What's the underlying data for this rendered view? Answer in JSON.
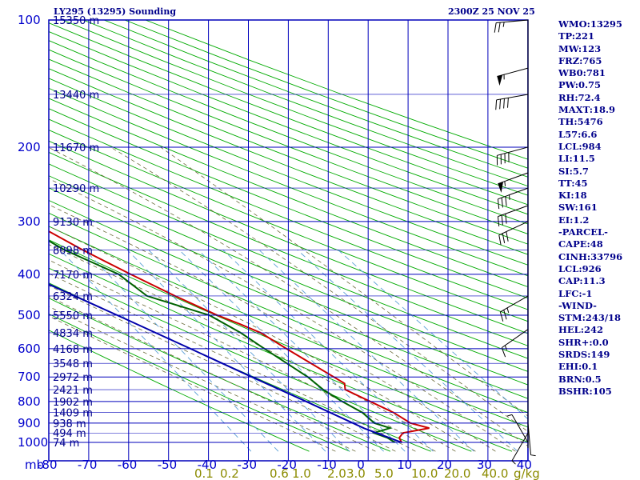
{
  "header": {
    "station_title": "LY295 (13295) Sounding",
    "valid_time": "2300Z 25 NOV 25"
  },
  "indices": [
    "WMO:13295",
    "TP:221",
    "MW:123",
    "FRZ:765",
    "WB0:781",
    "PW:0.75",
    "RH:72.4",
    "MAXT:18.9",
    "TH:5476",
    "L57:6.6",
    "LCL:984",
    "LI:11.5",
    "SI:5.7",
    "TT:45",
    "KI:18",
    "SW:161",
    "EI:1.2",
    "-PARCEL-",
    "CAPE:48",
    "CINH:33796",
    "LCL:926",
    "CAP:11.3",
    "LFC:-1",
    "-WIND-",
    "STM:243/18",
    "HEL:242",
    "SHR+:0.0",
    "SRDS:149",
    "EHI:0.1",
    "BRN:0.5",
    "BSHR:105"
  ],
  "colors": {
    "grid": "#0000bb",
    "dry_adiabat": "#00aa00",
    "moist_adiabat": "#6b6b3a",
    "mixing_ratio": "#5a9fd6",
    "temperature": "#cc0000",
    "dewpoint": "#006400",
    "parcel": "#0000aa",
    "wind_barb": "#000000",
    "mix_ratio_label": "#8b8b00"
  },
  "chart_data": {
    "type": "line",
    "title": "",
    "xlabel": "",
    "ylabel": "mb",
    "skew": "skew-T log-p",
    "pressure_levels": [
      100,
      200,
      300,
      400,
      500,
      600,
      700,
      800,
      900,
      1000
    ],
    "pressure_range": [
      100,
      1050
    ],
    "x_ticks": [
      -80,
      -70,
      -60,
      -50,
      -40,
      -30,
      -20,
      -10,
      0,
      10,
      20,
      30,
      40
    ],
    "x_range": [
      -80,
      40
    ],
    "height_labels": [
      {
        "p": 100,
        "text": "15350 m"
      },
      {
        "p": 150,
        "text": "13440 m"
      },
      {
        "p": 200,
        "text": "11670 m"
      },
      {
        "p": 250,
        "text": "10290 m"
      },
      {
        "p": 300,
        "text": "9130 m"
      },
      {
        "p": 350,
        "text": "8098 m"
      },
      {
        "p": 400,
        "text": "7170 m"
      },
      {
        "p": 450,
        "text": "6324 m"
      },
      {
        "p": 500,
        "text": "5550 m"
      },
      {
        "p": 550,
        "text": "4834 m"
      },
      {
        "p": 600,
        "text": "4168 m"
      },
      {
        "p": 650,
        "text": "3548 m"
      },
      {
        "p": 700,
        "text": "2972 m"
      },
      {
        "p": 750,
        "text": "2421 m"
      },
      {
        "p": 800,
        "text": "1902 m"
      },
      {
        "p": 850,
        "text": "1409 m"
      },
      {
        "p": 900,
        "text": "938 m"
      },
      {
        "p": 950,
        "text": "494 m"
      },
      {
        "p": 1000,
        "text": "74 m"
      }
    ],
    "mixing_ratio_labels": [
      "0.1",
      "0.2",
      "0.6",
      "1.0",
      "2.0",
      "3.0",
      "5.0",
      "10.0",
      "20.0",
      "40.0",
      "g/kg"
    ],
    "mixing_ratio_values": [
      0.1,
      0.2,
      0.6,
      1,
      2,
      3,
      5,
      10,
      20,
      40
    ],
    "series": [
      {
        "id": "temperature",
        "points": [
          {
            "p": 1000,
            "t": -1.8
          },
          {
            "p": 975,
            "t": -1.5
          },
          {
            "p": 950,
            "t": 0.3
          },
          {
            "p": 925,
            "t": 7.8
          },
          {
            "p": 900,
            "t": 4.0
          },
          {
            "p": 850,
            "t": 1.8
          },
          {
            "p": 800,
            "t": -2.0
          },
          {
            "p": 750,
            "t": -6.0
          },
          {
            "p": 725,
            "t": -5.0
          },
          {
            "p": 700,
            "t": -6.5
          },
          {
            "p": 600,
            "t": -13.0
          },
          {
            "p": 550,
            "t": -16.5
          },
          {
            "p": 525,
            "t": -20.0
          },
          {
            "p": 500,
            "t": -24.0
          },
          {
            "p": 450,
            "t": -31.0
          },
          {
            "p": 400,
            "t": -38.0
          },
          {
            "p": 350,
            "t": -45.5
          },
          {
            "p": 300,
            "t": -53.0
          },
          {
            "p": 250,
            "t": -61.0
          },
          {
            "p": 225,
            "t": -64.0
          },
          {
            "p": 200,
            "t": -62.0
          },
          {
            "p": 150,
            "t": -64.0
          },
          {
            "p": 130,
            "t": -67.0
          },
          {
            "p": 110,
            "t": -60.0
          },
          {
            "p": 100,
            "t": -63.0
          }
        ]
      },
      {
        "id": "dewpoint",
        "points": [
          {
            "p": 1000,
            "t": -3.5
          },
          {
            "p": 975,
            "t": -4.5
          },
          {
            "p": 950,
            "t": -7.0
          },
          {
            "p": 925,
            "t": -2.0
          },
          {
            "p": 900,
            "t": -5.0
          },
          {
            "p": 850,
            "t": -6.0
          },
          {
            "p": 800,
            "t": -9.0
          },
          {
            "p": 750,
            "t": -11.5
          },
          {
            "p": 700,
            "t": -13.0
          },
          {
            "p": 600,
            "t": -18.5
          },
          {
            "p": 550,
            "t": -21.5
          },
          {
            "p": 500,
            "t": -26.0
          },
          {
            "p": 450,
            "t": -38.0
          },
          {
            "p": 400,
            "t": -41.0
          },
          {
            "p": 350,
            "t": -50.0
          },
          {
            "p": 300,
            "t": -57.0
          },
          {
            "p": 250,
            "t": -72.0
          },
          {
            "p": 225,
            "t": -75.0
          },
          {
            "p": 200,
            "t": -72.0
          },
          {
            "p": 180,
            "t": -78.0
          },
          {
            "p": 150,
            "t": -81.0
          },
          {
            "p": 130,
            "t": -87.0
          },
          {
            "p": 115,
            "t": -88.0
          },
          {
            "p": 100,
            "t": -87.0
          }
        ]
      },
      {
        "id": "parcel",
        "points": [
          {
            "p": 1000,
            "t": -1.8
          },
          {
            "p": 926,
            "t": -8.5
          },
          {
            "p": 800,
            "t": -18.0
          },
          {
            "p": 700,
            "t": -27.0
          },
          {
            "p": 600,
            "t": -37.0
          },
          {
            "p": 500,
            "t": -49.0
          },
          {
            "p": 400,
            "t": -64.0
          },
          {
            "p": 300,
            "t": -84.0
          },
          {
            "p": 226,
            "t": -102.0
          }
        ]
      }
    ],
    "winds": [
      {
        "p": 100,
        "dir": 265,
        "spd": 25
      },
      {
        "p": 130,
        "dir": 255,
        "spd": 55
      },
      {
        "p": 150,
        "dir": 260,
        "spd": 40
      },
      {
        "p": 200,
        "dir": 255,
        "spd": 40
      },
      {
        "p": 230,
        "dir": 250,
        "spd": 55
      },
      {
        "p": 250,
        "dir": 250,
        "spd": 35
      },
      {
        "p": 275,
        "dir": 250,
        "spd": 30
      },
      {
        "p": 300,
        "dir": 245,
        "spd": 30
      },
      {
        "p": 450,
        "dir": 240,
        "spd": 25
      },
      {
        "p": 540,
        "dir": 235,
        "spd": 15
      },
      {
        "p": 900,
        "dir": 175,
        "spd": 5
      },
      {
        "p": 950,
        "dir": 210,
        "spd": 5
      },
      {
        "p": 1000,
        "dir": 330,
        "spd": 5
      }
    ]
  }
}
